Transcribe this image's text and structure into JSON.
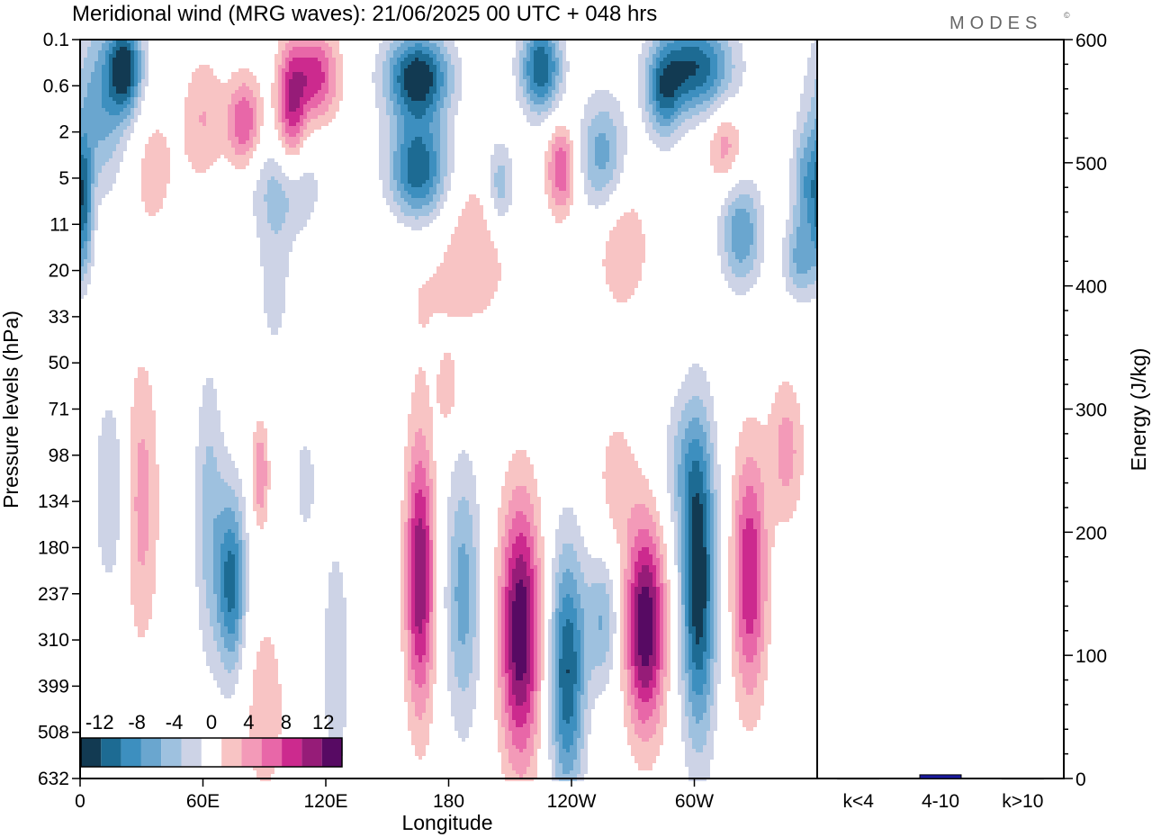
{
  "title": "Meridional wind (MRG waves):  21/06/2025  00 UTC  + 048 hrs",
  "logo": "MODES",
  "logo_mark": "©",
  "chart_data": [
    {
      "type": "heatmap",
      "title": "Meridional wind (MRG waves):  21/06/2025  00 UTC  + 048 hrs",
      "xlabel": "Longitude",
      "ylabel": "Pressure levels (hPa)",
      "x_tick_labels": [
        "0",
        "60E",
        "120E",
        "180",
        "120W",
        "60W"
      ],
      "x_ticks_deg": [
        0,
        60,
        120,
        180,
        240,
        300
      ],
      "xlim_deg": [
        0,
        360
      ],
      "y_levels": [
        "0.1",
        "0.6",
        "2",
        "5",
        "11",
        "20",
        "33",
        "50",
        "71",
        "98",
        "134",
        "180",
        "237",
        "310",
        "399",
        "508",
        "632"
      ],
      "colorbar": {
        "tick_labels": [
          "-12",
          "-8",
          "-4",
          "0",
          "4",
          "8",
          "12"
        ],
        "bounds": [
          -14,
          -12,
          -10,
          -8,
          -6,
          -4,
          -2,
          2,
          4,
          6,
          8,
          10,
          12,
          14
        ],
        "colors": [
          "#123a52",
          "#1d6b93",
          "#3d8fbf",
          "#6aa6cf",
          "#9ec1df",
          "#cdd3e6",
          "#ffffff",
          "#f8c4c4",
          "#f39ab8",
          "#e867a8",
          "#cc2a8e",
          "#961c78",
          "#570a63"
        ]
      },
      "blobs": [
        {
          "lon": 22,
          "lev": 0.6,
          "dlon": 6,
          "dlev": 0.7,
          "v": -12
        },
        {
          "lon": 10,
          "lev": 1.4,
          "dlon": 10,
          "dlev": 1.3,
          "v": -7
        },
        {
          "lon": 35,
          "lev": 2.8,
          "dlon": 9,
          "dlev": 1.1,
          "v": 3
        },
        {
          "lon": 2,
          "lev": 3.6,
          "dlon": 3,
          "dlev": 1.0,
          "v": -8
        },
        {
          "lon": 60,
          "lev": 1.7,
          "dlon": 7,
          "dlev": 1.0,
          "v": 4
        },
        {
          "lon": 80,
          "lev": 1.8,
          "dlon": 6,
          "dlev": 0.7,
          "v": 8
        },
        {
          "lon": 103,
          "lev": 1.5,
          "dlon": 5,
          "dlev": 1.0,
          "v": 9
        },
        {
          "lon": 115,
          "lev": 0.8,
          "dlon": 8,
          "dlev": 0.7,
          "v": 9
        },
        {
          "lon": 100,
          "lev": 3.2,
          "dlon": 12,
          "dlev": 0.8,
          "v": -5
        },
        {
          "lon": 165,
          "lev": 0.8,
          "dlon": 11,
          "dlev": 0.65,
          "v": -14
        },
        {
          "lon": 165,
          "lev": 2.8,
          "dlon": 10,
          "dlev": 0.8,
          "v": -12
        },
        {
          "lon": 195,
          "lev": 4.2,
          "dlon": 10,
          "dlev": 1.0,
          "v": 3
        },
        {
          "lon": 175,
          "lev": 5.4,
          "dlon": 25,
          "dlev": 1.3,
          "v": 2
        },
        {
          "lon": 225,
          "lev": 0.6,
          "dlon": 7,
          "dlev": 0.7,
          "v": -12
        },
        {
          "lon": 255,
          "lev": 2.5,
          "dlon": 8,
          "dlev": 0.9,
          "v": -7
        },
        {
          "lon": 235,
          "lev": 2.8,
          "dlon": 5,
          "dlev": 0.7,
          "v": 8
        },
        {
          "lon": 205,
          "lev": 3.2,
          "dlon": 5,
          "dlev": 0.7,
          "v": -6
        },
        {
          "lon": 265,
          "lev": 4.5,
          "dlon": 9,
          "dlev": 1.0,
          "v": 4
        },
        {
          "lon": 300,
          "lev": 0.6,
          "dlon": 13,
          "dlev": 0.7,
          "v": -12
        },
        {
          "lon": 285,
          "lev": 1.2,
          "dlon": 6,
          "dlev": 0.7,
          "v": -8
        },
        {
          "lon": 315,
          "lev": 2.3,
          "dlon": 6,
          "dlev": 0.6,
          "v": 5
        },
        {
          "lon": 323,
          "lev": 4.2,
          "dlon": 7,
          "dlev": 0.8,
          "v": -8
        },
        {
          "lon": 355,
          "lev": 3.2,
          "dlon": 5,
          "dlev": 0.9,
          "v": -7
        },
        {
          "lon": 352,
          "lev": 4.8,
          "dlon": 6,
          "dlev": 0.6,
          "v": -6
        },
        {
          "lon": 95,
          "lev": 5.3,
          "dlon": 6,
          "dlev": 1.2,
          "v": -3
        },
        {
          "lon": 15,
          "lev": 9.8,
          "dlon": 6,
          "dlev": 1.6,
          "v": -4
        },
        {
          "lon": 30,
          "lev": 10.0,
          "dlon": 6,
          "dlev": 2.2,
          "v": 5
        },
        {
          "lon": 63,
          "lev": 10.3,
          "dlon": 5,
          "dlev": 2.2,
          "v": -5
        },
        {
          "lon": 74,
          "lev": 11.8,
          "dlon": 5,
          "dlev": 1.4,
          "v": -11
        },
        {
          "lon": 88,
          "lev": 9.4,
          "dlon": 3,
          "dlev": 0.8,
          "v": 6
        },
        {
          "lon": 110,
          "lev": 9.6,
          "dlon": 4,
          "dlev": 0.9,
          "v": -3
        },
        {
          "lon": 166,
          "lev": 11.6,
          "dlon": 5,
          "dlev": 2.1,
          "v": 12
        },
        {
          "lon": 187,
          "lev": 12.0,
          "dlon": 6,
          "dlev": 2.0,
          "v": -7
        },
        {
          "lon": 215,
          "lev": 12.8,
          "dlon": 7,
          "dlev": 2.0,
          "v": 14
        },
        {
          "lon": 238,
          "lev": 13.7,
          "dlon": 6,
          "dlev": 1.9,
          "v": -12
        },
        {
          "lon": 255,
          "lev": 12.6,
          "dlon": 6,
          "dlev": 1.0,
          "v": -6
        },
        {
          "lon": 276,
          "lev": 12.7,
          "dlon": 7,
          "dlev": 1.6,
          "v": 14
        },
        {
          "lon": 262,
          "lev": 9.5,
          "dlon": 7,
          "dlev": 1.1,
          "v": 3
        },
        {
          "lon": 302,
          "lev": 11.8,
          "dlon": 6,
          "dlev": 2.3,
          "v": -14
        },
        {
          "lon": 327,
          "lev": 11.6,
          "dlon": 6,
          "dlev": 1.9,
          "v": 10
        },
        {
          "lon": 345,
          "lev": 8.9,
          "dlon": 6,
          "dlev": 1.1,
          "v": 5
        },
        {
          "lon": 295,
          "lev": 9.2,
          "dlon": 8,
          "dlev": 1.1,
          "v": -4
        },
        {
          "lon": 180,
          "lev": 7.7,
          "dlon": 4,
          "dlev": 0.6,
          "v": 3
        },
        {
          "lon": 90,
          "lev": 14.5,
          "dlon": 9,
          "dlev": 1.8,
          "v": 3
        },
        {
          "lon": 125,
          "lev": 13.5,
          "dlon": 6,
          "dlev": 2.5,
          "v": -3
        }
      ]
    },
    {
      "type": "bar",
      "categories": [
        "k<4",
        "4-10",
        "k>10"
      ],
      "values": [
        0,
        3,
        0
      ],
      "ylabel": "Energy (J/kg)",
      "ylim": [
        0,
        600
      ],
      "y_tick_labels": [
        "0",
        "100",
        "200",
        "300",
        "400",
        "500",
        "600"
      ],
      "bar_color": "#1a1aa0"
    }
  ]
}
